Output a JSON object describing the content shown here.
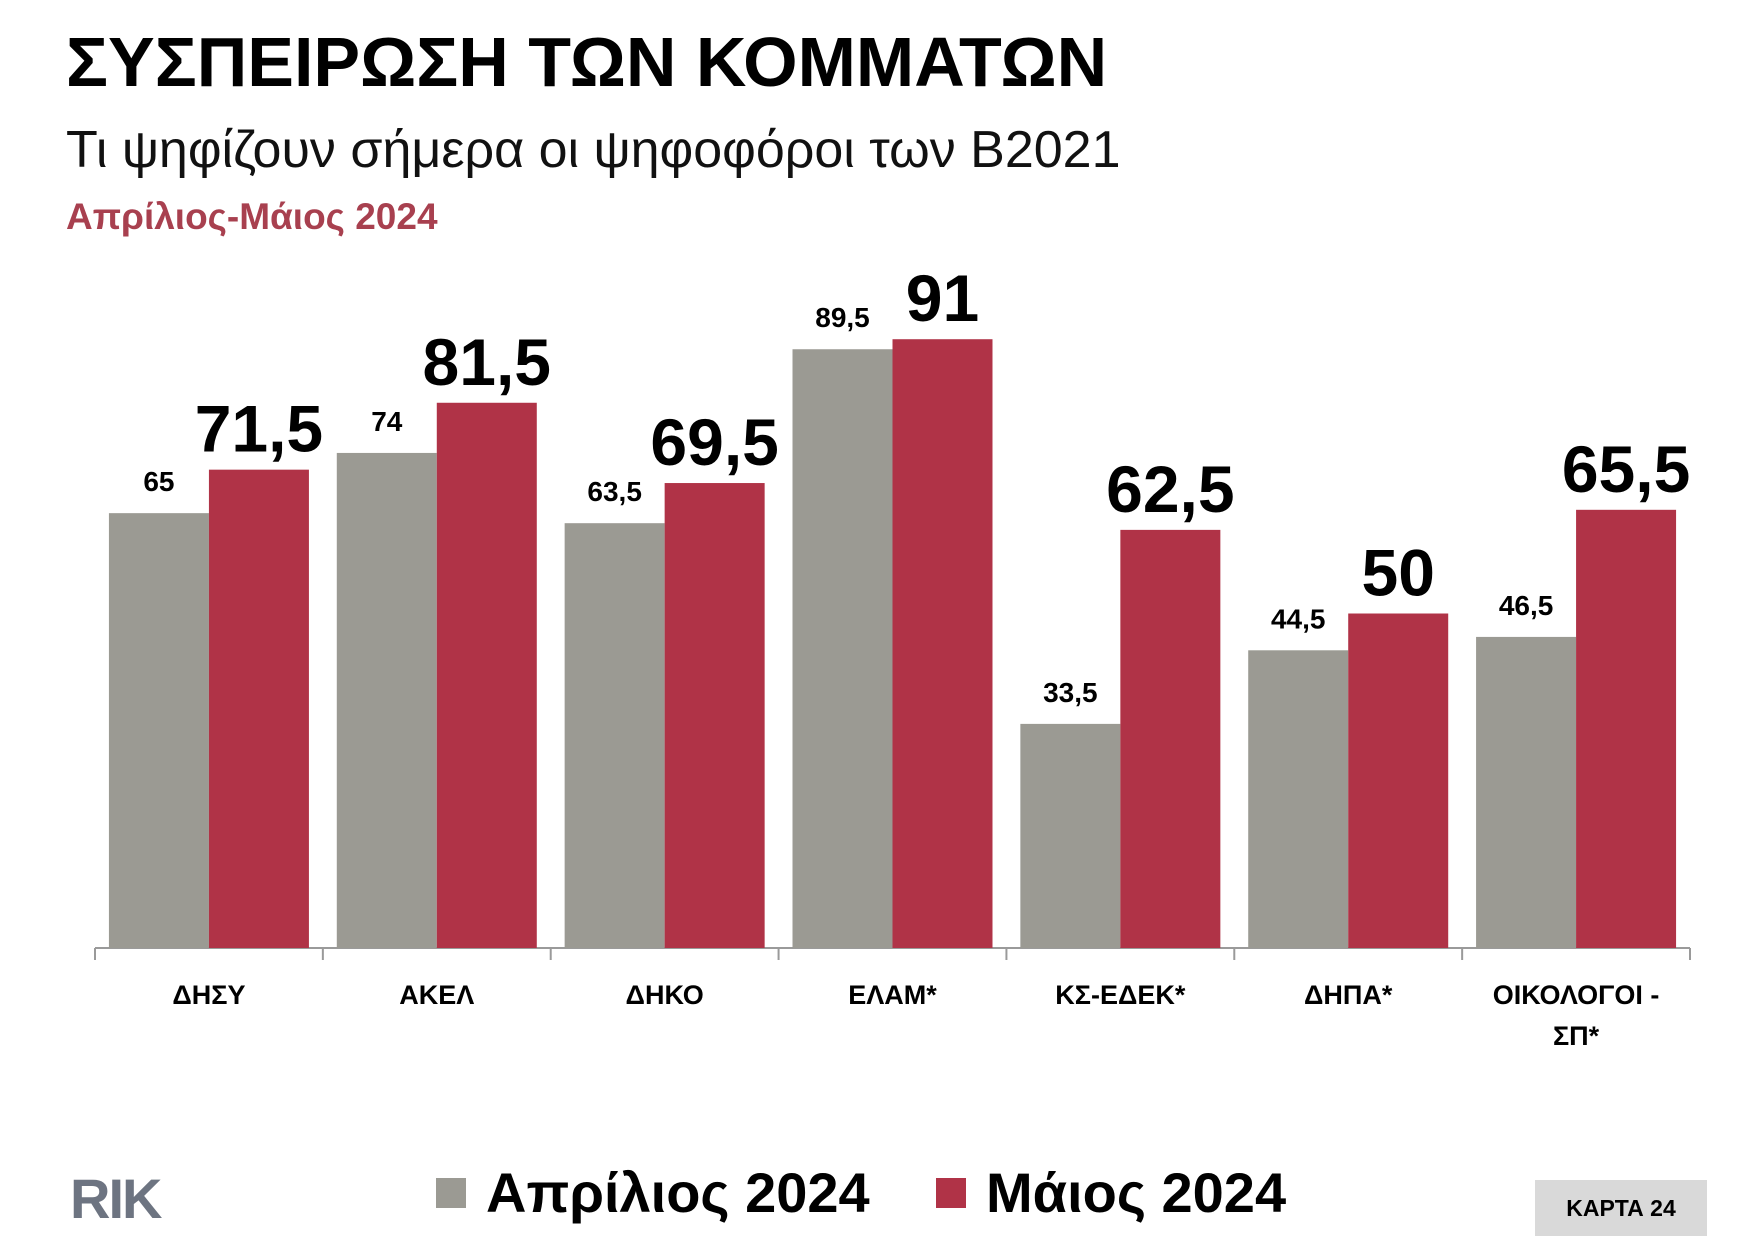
{
  "title": "ΣΥΣΠΕΙΡΩΣΗ ΤΩΝ ΚΟΜΜΑΤΩΝ",
  "subtitle": "Τι ψηφίζουν σήμερα οι ψηφοφόροι των Β2021",
  "period": "Απρίλιος-Μάιος 2024",
  "colors": {
    "april": "#9b9a93",
    "may": "#b03347",
    "period": "#a8404f"
  },
  "chart_data": {
    "type": "bar",
    "categories": [
      "ΔΗΣΥ",
      "ΑΚΕΛ",
      "ΔΗΚΟ",
      "ΕΛΑΜ*",
      "ΚΣ-ΕΔΕΚ*",
      "ΔΗΠΑ*",
      "ΟΙΚΟΛΟΓΟΙ - ΣΠ*"
    ],
    "category_lines": [
      [
        "ΔΗΣΥ"
      ],
      [
        "ΑΚΕΛ"
      ],
      [
        "ΔΗΚΟ"
      ],
      [
        "ΕΛΑΜ*"
      ],
      [
        "ΚΣ-ΕΔΕΚ*"
      ],
      [
        "ΔΗΠΑ*"
      ],
      [
        "ΟΙΚΟΛΟΓΟΙ -",
        "ΣΠ*"
      ]
    ],
    "series": [
      {
        "name": "Απρίλιος 2024",
        "values": [
          65,
          74,
          63.5,
          89.5,
          33.5,
          44.5,
          46.5
        ],
        "labels": [
          "65",
          "74",
          "63,5",
          "89,5",
          "33,5",
          "44,5",
          "46,5"
        ]
      },
      {
        "name": "Μάιος 2024",
        "values": [
          71.5,
          81.5,
          69.5,
          91,
          62.5,
          50,
          65.5
        ],
        "labels": [
          "71,5",
          "81,5",
          "69,5",
          "91",
          "62,5",
          "50",
          "65,5"
        ]
      }
    ],
    "title": "ΣΥΣΠΕΙΡΩΣΗ ΤΩΝ ΚΟΜΜΑΤΩΝ",
    "xlabel": "",
    "ylabel": "",
    "ylim": [
      0,
      100
    ],
    "grid": false,
    "legend": "bottom"
  },
  "legend": {
    "april": "Απρίλιος 2024",
    "may": "Μάιος 2024"
  },
  "logo": "RIK",
  "badge": "ΚΑΡΤΑ 24"
}
